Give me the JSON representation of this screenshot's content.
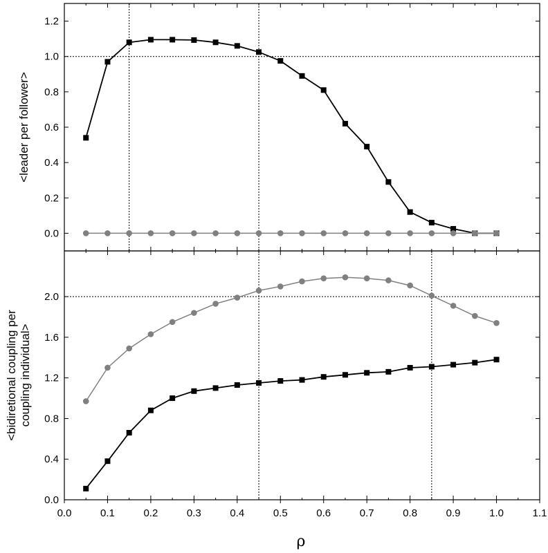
{
  "chart_data": [
    {
      "type": "line",
      "panel": "top",
      "xlabel": "ρ",
      "ylabel": "<leader per follower>",
      "xlim": [
        0.0,
        1.1
      ],
      "ylim": [
        -0.1,
        1.3
      ],
      "yticks": [
        "0.0",
        "0.2",
        "0.4",
        "0.6",
        "0.8",
        "1.0",
        "1.2"
      ],
      "grid": false,
      "reference_lines": {
        "x": [
          0.15,
          0.45
        ],
        "y": [
          1.0
        ]
      },
      "x": [
        0.05,
        0.1,
        0.15,
        0.2,
        0.25,
        0.3,
        0.35,
        0.4,
        0.45,
        0.5,
        0.55,
        0.6,
        0.65,
        0.7,
        0.75,
        0.8,
        0.85,
        0.9,
        0.95,
        1.0
      ],
      "series": [
        {
          "color": "#000000",
          "marker": "square",
          "values": [
            0.54,
            0.97,
            1.08,
            1.095,
            1.095,
            1.093,
            1.08,
            1.06,
            1.025,
            0.975,
            0.89,
            0.81,
            0.62,
            0.49,
            0.29,
            0.12,
            0.06,
            0.025,
            0.0,
            0.0
          ]
        },
        {
          "color": "#808080",
          "marker": "circle",
          "values": [
            0,
            0,
            0,
            0,
            0,
            0,
            0,
            0,
            0,
            0,
            0,
            0,
            0,
            0,
            0,
            0,
            0,
            0,
            0,
            0
          ]
        }
      ]
    },
    {
      "type": "line",
      "panel": "bottom",
      "xlabel": "ρ",
      "ylabel": [
        "<bidiretional coupling per",
        "coupling individual>"
      ],
      "xlim": [
        0.0,
        1.1
      ],
      "ylim": [
        0.0,
        2.45
      ],
      "yticks": [
        "0.0",
        "0.4",
        "0.8",
        "1.2",
        "1.6",
        "2.0"
      ],
      "xticks": [
        "0.0",
        "0.1",
        "0.2",
        "0.3",
        "0.4",
        "0.5",
        "0.6",
        "0.7",
        "0.8",
        "0.9",
        "1.0",
        "1.1"
      ],
      "grid": false,
      "reference_lines": {
        "x": [
          0.45,
          0.85
        ],
        "y": [
          2.0
        ]
      },
      "x": [
        0.05,
        0.1,
        0.15,
        0.2,
        0.25,
        0.3,
        0.35,
        0.4,
        0.45,
        0.5,
        0.55,
        0.6,
        0.65,
        0.7,
        0.75,
        0.8,
        0.85,
        0.9,
        0.95,
        1.0
      ],
      "series": [
        {
          "color": "#808080",
          "marker": "circle",
          "values": [
            0.97,
            1.3,
            1.49,
            1.63,
            1.75,
            1.84,
            1.93,
            1.99,
            2.06,
            2.1,
            2.15,
            2.18,
            2.19,
            2.18,
            2.16,
            2.11,
            2.01,
            1.91,
            1.81,
            1.74
          ]
        },
        {
          "color": "#000000",
          "marker": "square",
          "values": [
            0.11,
            0.38,
            0.66,
            0.88,
            1.0,
            1.07,
            1.1,
            1.13,
            1.15,
            1.17,
            1.18,
            1.21,
            1.23,
            1.25,
            1.26,
            1.3,
            1.31,
            1.33,
            1.35,
            1.38
          ]
        }
      ]
    }
  ]
}
